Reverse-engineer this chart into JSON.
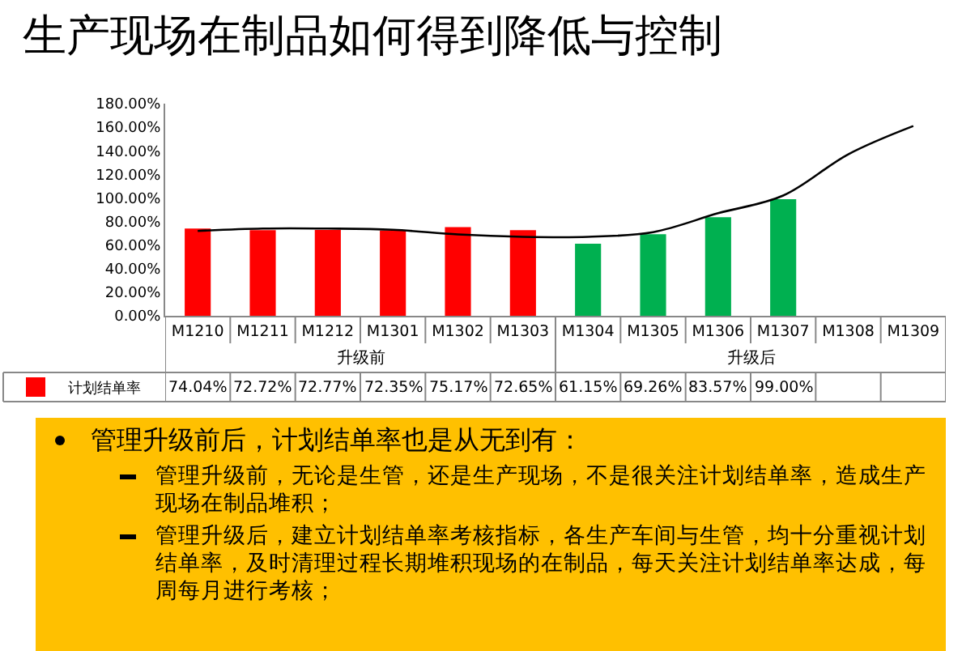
{
  "chart_data": {
    "type": "bar",
    "title": "生产现场在制品如何得到降低与控制",
    "categories": [
      "M1210",
      "M1211",
      "M1212",
      "M1301",
      "M1302",
      "M1303",
      "M1304",
      "M1305",
      "M1306",
      "M1307",
      "M1308",
      "M1309"
    ],
    "series": [
      {
        "name": "计划结单率",
        "colors": [
          "#ff0000",
          "#ff0000",
          "#ff0000",
          "#ff0000",
          "#ff0000",
          "#ff0000",
          "#00b050",
          "#00b050",
          "#00b050",
          "#00b050",
          "#00b050",
          "#00b050"
        ],
        "values": [
          74.04,
          72.72,
          72.77,
          72.35,
          75.17,
          72.65,
          61.15,
          69.26,
          83.57,
          99.0,
          null,
          null
        ],
        "value_labels": [
          "74.04%",
          "72.72%",
          "72.77%",
          "72.35%",
          "75.17%",
          "72.65%",
          "61.15%",
          "69.26%",
          "83.57%",
          "99.00%",
          null,
          null
        ]
      },
      {
        "type": "line",
        "color": "#000000",
        "values": [
          72,
          74,
          74,
          73,
          69,
          67,
          67,
          71,
          87,
          102,
          137,
          161
        ]
      }
    ],
    "ylim": [
      0,
      180
    ],
    "yticks": [
      {
        "value": 0,
        "label": "0.00%"
      },
      {
        "value": 20,
        "label": "20.00%"
      },
      {
        "value": 40,
        "label": "40.00%"
      },
      {
        "value": 60,
        "label": "60.00%"
      },
      {
        "value": 80,
        "label": "80.00%"
      },
      {
        "value": 100,
        "label": "100.00%"
      },
      {
        "value": 120,
        "label": "120.00%"
      },
      {
        "value": 140,
        "label": "140.00%"
      },
      {
        "value": 160,
        "label": "160.00%"
      },
      {
        "value": 180,
        "label": "180.00%"
      }
    ],
    "grid": false,
    "legend": "bottom left",
    "annotations": [
      "升级前",
      "升级后",
      "管理升级前后，计划结单率也是从无到有：",
      "管理升级前，无论是生管，还是生产现场，不是很关注计划结单率，造成生产现场在制品堆积；",
      "管理升级后，建立计划结单率考核指标，各生产车间与生管，均十分重视计划结单率，及时清理过程长期堆积现场的在制品，每天关注计划结单率达成，每周每月进行考核；"
    ]
  }
}
